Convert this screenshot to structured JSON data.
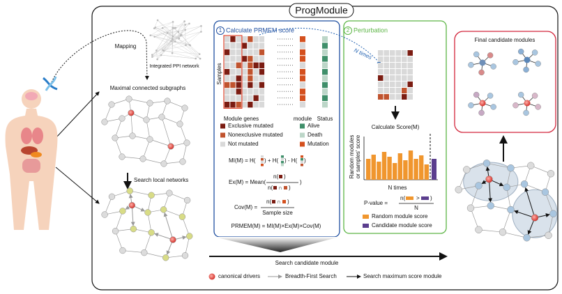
{
  "title": "ProgModule",
  "left": {
    "mapping": "Mapping",
    "ppi": "Integrated PPI network",
    "maximal": "Maximal connected subgraphs",
    "search_local": "Search local networks"
  },
  "step1": {
    "number": "1",
    "title": "Calculate PRMEM score",
    "samples": "Samples",
    "module_genes": "Module genes",
    "module": "module",
    "status": "Status",
    "legend": [
      "Exclusive mutated",
      "Nonexclusive mutated",
      "Not mutated",
      "Alive",
      "Death",
      "Mutation"
    ],
    "mi": [
      "MI(M) = H(",
      ") + H(",
      ") - H(",
      ")"
    ],
    "ex_left": "Ex(M) = Mean(",
    "cov_left": "Cov(M) =",
    "n": "n(",
    "close": ")",
    "cap": "∩",
    "sample_size": "Sample size",
    "prmem": "PRMEM(M) = MI(M)×Ex(M)×Cov(M)"
  },
  "step2": {
    "number": "2",
    "title": "Perturbation",
    "n_times": "N times",
    "calc": "Calculate Score(M)",
    "ylabel": [
      "Random modules",
      "or samples' score"
    ],
    "xlabel": "N times",
    "pvalue": "P-value =",
    "gt": ">",
    "den": "N",
    "legend": [
      "Random module score",
      "Candidate module score"
    ]
  },
  "final": "Final candidate modules",
  "bottom": {
    "search": "Search candidate module",
    "legend": [
      "canonical drivers",
      "Breadth-First Search",
      "Search maximum score module"
    ]
  }
}
